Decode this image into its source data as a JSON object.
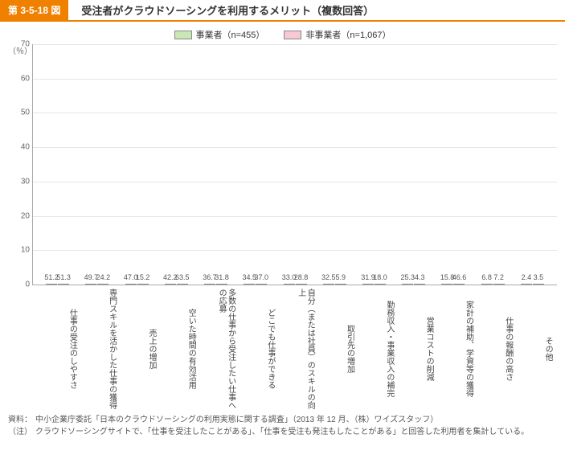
{
  "header": {
    "tag": "第 3-5-18 図",
    "title": "受注者がクラウドソーシングを利用するメリット（複数回答）"
  },
  "legend": {
    "series": [
      {
        "label": "事業者（n=455）",
        "color": "#c9e7b5"
      },
      {
        "label": "非事業者（n=1,067）",
        "color": "#f6c9d4"
      }
    ]
  },
  "chart": {
    "type": "bar",
    "ylabel": "（％）",
    "ylim": [
      0,
      70
    ],
    "ytick_step": 10,
    "background_color": "#ffffff",
    "grid_color": "#e6e6e6",
    "axis_color": "#aaaaaa",
    "bar_border_color": "#888888",
    "label_fontsize": 9,
    "categories": [
      "仕事の受注のしやすさ",
      "専門スキルを活かした仕事の獲得",
      "売上の増加",
      "空いた時間の有効活用",
      "多数の仕事から受注したい仕事への応募",
      "どこでも仕事ができる",
      "自分（または社員）のスキルの向上",
      "取引先の増加",
      "勤務収入・事業収入の補完",
      "営業コストの削減",
      "家計の補助、学資等の獲得",
      "仕事の報酬の高さ",
      "その他"
    ],
    "series_a": [
      51.2,
      49.7,
      47.0,
      42.2,
      36.7,
      34.5,
      33.0,
      32.5,
      31.9,
      25.3,
      15.8,
      6.8,
      2.4
    ],
    "series_b": [
      51.3,
      24.2,
      15.2,
      63.5,
      31.8,
      37.0,
      28.8,
      5.9,
      18.0,
      4.3,
      46.6,
      7.2,
      3.5
    ]
  },
  "footnotes": {
    "source_tag": "資料：",
    "source": "中小企業庁委託「日本のクラウドソーシングの利用実態に関する調査」（2013 年 12 月、（株）ワイズスタッフ）",
    "note_tag": "（注）",
    "note": "クラウドソーシングサイトで、「仕事を受注したことがある」、「仕事を受注も発注もしたことがある」と回答した利用者を集計している。"
  }
}
